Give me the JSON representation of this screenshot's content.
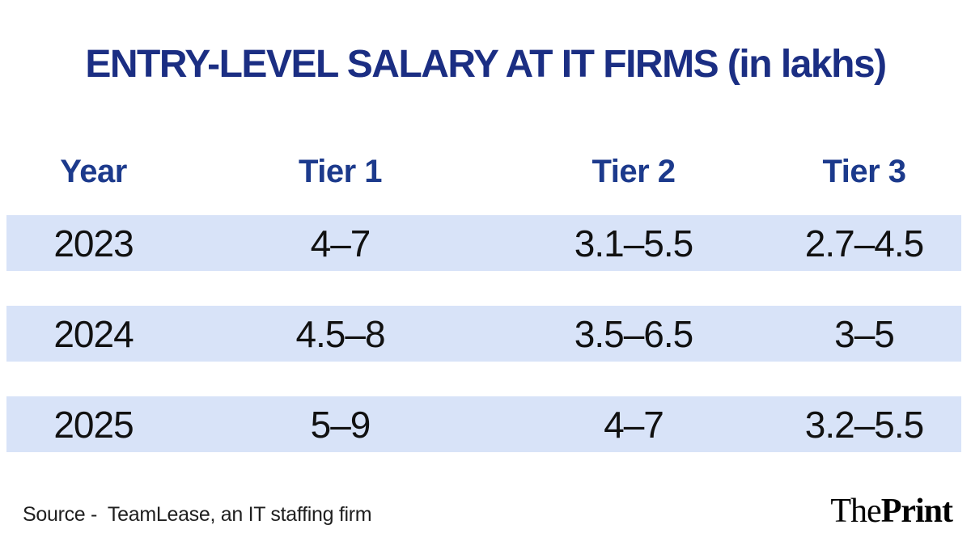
{
  "title": "ENTRY-LEVEL SALARY AT IT FIRMS (in lakhs)",
  "table": {
    "headers": [
      "Year",
      "Tier 1",
      "Tier 2",
      "Tier 3"
    ],
    "rows": [
      [
        "2023",
        "4–7",
        "3.1–5.5",
        "2.7–4.5"
      ],
      [
        "2024",
        "4.5–8",
        "3.5–6.5",
        "3–5"
      ],
      [
        "2025",
        "5–9",
        "4–7",
        "3.2–5.5"
      ]
    ]
  },
  "footer": {
    "source": "Source -  TeamLease, an IT staffing firm",
    "logo_the": "The",
    "logo_print": "Print"
  },
  "colors": {
    "title_navy": "#1b2e83",
    "header_navy": "#1c3a8c",
    "row_background": "#d8e3f8",
    "data_text": "#111111",
    "logo_black": "#000000"
  },
  "chart_data": {
    "type": "table",
    "title": "ENTRY-LEVEL SALARY AT IT FIRMS (in lakhs)",
    "unit": "lakhs",
    "columns": [
      "Year",
      "Tier 1",
      "Tier 2",
      "Tier 3"
    ],
    "categories": [
      "2023",
      "2024",
      "2025"
    ],
    "rows": [
      [
        "2023",
        "4–7",
        "3.1–5.5",
        "2.7–4.5"
      ],
      [
        "2024",
        "4.5–8",
        "3.5–6.5",
        "3–5"
      ],
      [
        "2025",
        "5–9",
        "4–7",
        "3.2–5.5"
      ]
    ],
    "series": [
      {
        "name": "Tier 1",
        "ranges": [
          [
            4,
            7
          ],
          [
            4.5,
            8
          ],
          [
            5,
            9
          ]
        ]
      },
      {
        "name": "Tier 2",
        "ranges": [
          [
            3.1,
            5.5
          ],
          [
            3.5,
            6.5
          ],
          [
            4,
            7
          ]
        ]
      },
      {
        "name": "Tier 3",
        "ranges": [
          [
            2.7,
            4.5
          ],
          [
            3,
            5
          ],
          [
            3.2,
            5.5
          ]
        ]
      }
    ],
    "source": "TeamLease, an IT staffing firm",
    "legend_position": "none",
    "grid": false
  }
}
